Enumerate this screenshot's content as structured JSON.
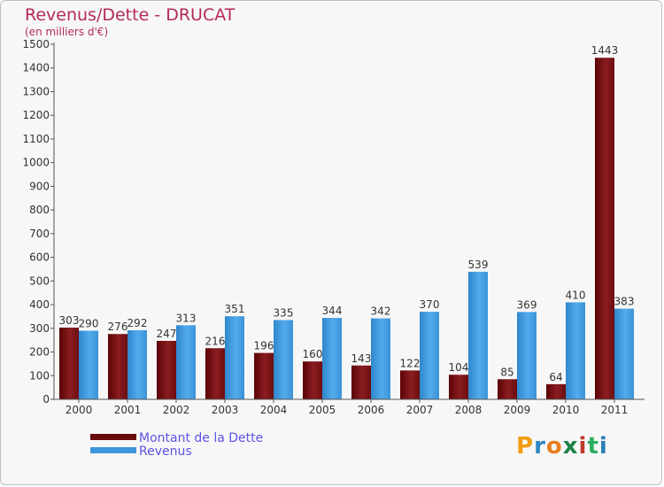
{
  "chart_data": {
    "type": "bar",
    "title": "Revenus/Dette - DRUCAT",
    "subtitle": "(en milliers d'€)",
    "categories": [
      "2000",
      "2001",
      "2002",
      "2003",
      "2004",
      "2005",
      "2006",
      "2007",
      "2008",
      "2009",
      "2010",
      "2011"
    ],
    "series": [
      {
        "name": "Montant de la Dette",
        "color": "#7a0f12",
        "values": [
          303,
          276,
          247,
          216,
          196,
          160,
          143,
          122,
          104,
          85,
          64,
          1443
        ]
      },
      {
        "name": "Revenus",
        "color": "#3d97dc",
        "values": [
          290,
          292,
          313,
          351,
          335,
          344,
          342,
          370,
          539,
          369,
          410,
          383
        ]
      }
    ],
    "yticks": [
      0,
      100,
      200,
      300,
      400,
      500,
      600,
      700,
      800,
      900,
      1000,
      1100,
      1200,
      1300,
      1400,
      1500
    ],
    "ylim": [
      0,
      1500
    ],
    "grid": false,
    "legend_position": "bottom-left"
  },
  "legend": {
    "items": [
      {
        "label": "Montant de la Dette",
        "color": "#7a0f12"
      },
      {
        "label": "Revenus",
        "color": "#3d97dc"
      }
    ]
  },
  "logo": {
    "letters": [
      "P",
      "r",
      "o",
      "x",
      "i",
      "t",
      "i"
    ],
    "colors": [
      "#f39c12",
      "#2e86c1",
      "#e67e22",
      "#1e8449",
      "#c0392b",
      "#27ae60",
      "#2980b9"
    ]
  }
}
